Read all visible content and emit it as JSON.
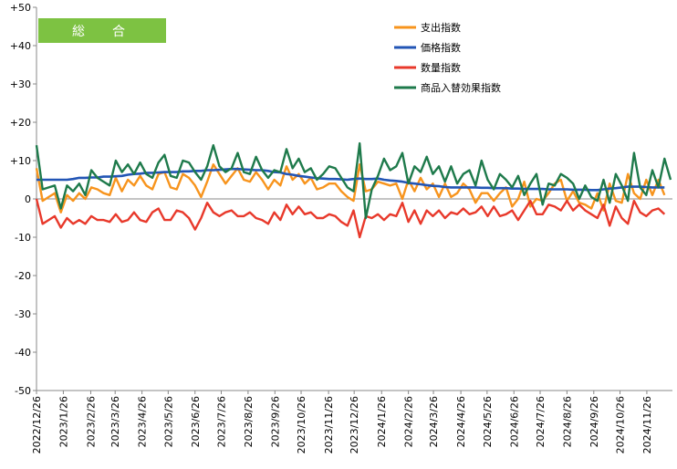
{
  "chart_data": {
    "type": "line",
    "badge": {
      "label": "総　合",
      "color": "#7dc242"
    },
    "yticks": [
      {
        "value": 50,
        "label": "+50"
      },
      {
        "value": 40,
        "label": "+40"
      },
      {
        "value": 30,
        "label": "+30"
      },
      {
        "value": 20,
        "label": "+20"
      },
      {
        "value": 10,
        "label": "+10"
      },
      {
        "value": 0,
        "label": "0"
      },
      {
        "value": -10,
        "label": "-10"
      },
      {
        "value": -20,
        "label": "-20"
      },
      {
        "value": -30,
        "label": "-30"
      },
      {
        "value": -40,
        "label": "-40"
      },
      {
        "value": -50,
        "label": "-50"
      }
    ],
    "ylim": [
      -50,
      50
    ],
    "xlim": [
      0,
      104
    ],
    "grid": false,
    "legend_position": "top-right",
    "xticks": [
      {
        "index": 0,
        "label": "2022/12/26"
      },
      {
        "index": 4.4,
        "label": "2023/1/26"
      },
      {
        "index": 8.9,
        "label": "2023/2/26"
      },
      {
        "index": 12.9,
        "label": "2023/3/26"
      },
      {
        "index": 17.3,
        "label": "2023/4/26"
      },
      {
        "index": 21.6,
        "label": "2023/5/26"
      },
      {
        "index": 26.0,
        "label": "2023/6/26"
      },
      {
        "index": 30.3,
        "label": "2023/7/26"
      },
      {
        "index": 34.7,
        "label": "2023/8/26"
      },
      {
        "index": 39.1,
        "label": "2023/9/26"
      },
      {
        "index": 43.4,
        "label": "2023/10/26"
      },
      {
        "index": 47.9,
        "label": "2023/11/26"
      },
      {
        "index": 52.1,
        "label": "2023/12/26"
      },
      {
        "index": 56.6,
        "label": "2024/1/26"
      },
      {
        "index": 61.0,
        "label": "2024/2/26"
      },
      {
        "index": 65.1,
        "label": "2024/3/26"
      },
      {
        "index": 69.6,
        "label": "2024/4/26"
      },
      {
        "index": 73.9,
        "label": "2024/5/26"
      },
      {
        "index": 78.3,
        "label": "2024/6/26"
      },
      {
        "index": 82.6,
        "label": "2024/7/26"
      },
      {
        "index": 87.0,
        "label": "2024/8/26"
      },
      {
        "index": 91.4,
        "label": "2024/9/26"
      },
      {
        "index": 95.7,
        "label": "2024/10/26"
      },
      {
        "index": 100.1,
        "label": "2024/11/26"
      }
    ],
    "series": [
      {
        "name": "支出指数",
        "color": "#f7941d",
        "values": [
          8,
          -0.5,
          0.5,
          1.5,
          -3.5,
          1,
          -0.5,
          1.5,
          0,
          3,
          2.5,
          1.5,
          1,
          5.5,
          2,
          5,
          3.5,
          6,
          3.5,
          2.5,
          6.5,
          7,
          3,
          2.5,
          6.5,
          5.5,
          3.5,
          0.5,
          4.5,
          9,
          6.5,
          4,
          6,
          8,
          5,
          4.5,
          7,
          5,
          2.5,
          5,
          3.5,
          8.5,
          5,
          6.5,
          4,
          5.5,
          2.5,
          3,
          4,
          4,
          2,
          0.5,
          -0.5,
          9,
          2,
          2.5,
          4.5,
          4,
          3.5,
          4,
          0,
          5,
          2,
          5.5,
          2.5,
          4,
          0.5,
          4,
          0.5,
          1.5,
          4,
          2.5,
          -1,
          1.5,
          1.5,
          -0.5,
          1.5,
          3,
          -2,
          0,
          4.5,
          -2,
          0,
          -0.5,
          1.5,
          4,
          5,
          -0.5,
          2,
          -1,
          -1.5,
          -2.5,
          1.5,
          -3,
          4,
          -0.5,
          -1,
          6.5,
          1.5,
          0,
          5,
          1,
          5,
          1
        ]
      },
      {
        "name": "価格指数",
        "color": "#2255b5",
        "values": [
          5,
          5,
          5,
          5,
          5,
          5,
          5.2,
          5.5,
          5.5,
          5.6,
          5.6,
          5.8,
          5.8,
          5.9,
          6,
          6.3,
          6.5,
          6.6,
          6.8,
          6.8,
          6.9,
          7,
          7,
          7,
          7.2,
          7.2,
          7.3,
          7.3,
          7.5,
          7.5,
          7.6,
          7.7,
          7.8,
          7.8,
          7.7,
          7.6,
          7.5,
          7.5,
          7.3,
          7,
          6.9,
          6.5,
          6.3,
          6,
          5.8,
          5.6,
          5.4,
          5.3,
          5.2,
          5.2,
          5.1,
          5,
          5.2,
          5.3,
          5.2,
          5.2,
          5.3,
          5,
          4.8,
          4.7,
          4.5,
          4.2,
          4,
          3.8,
          3.6,
          3.4,
          3.3,
          3.1,
          3,
          3,
          3,
          3,
          3,
          2.9,
          2.9,
          2.8,
          2.8,
          2.8,
          2.7,
          2.7,
          2.6,
          2.6,
          2.6,
          2.6,
          2.5,
          2.5,
          2.5,
          2.5,
          2.4,
          2.4,
          2.4,
          2.3,
          2.3,
          2.5,
          2.7,
          2.8,
          3,
          3.2,
          3.2,
          3.2,
          3.1,
          3,
          3,
          3
        ]
      },
      {
        "name": "数量指数",
        "color": "#e8392b",
        "values": [
          0,
          -6.5,
          -5.5,
          -4.5,
          -7.5,
          -5,
          -6.5,
          -5.5,
          -6.5,
          -4.5,
          -5.5,
          -5.5,
          -6,
          -4,
          -6,
          -5.5,
          -3.5,
          -5.5,
          -6,
          -3.5,
          -2.5,
          -5.5,
          -5.5,
          -3,
          -3.5,
          -5,
          -8,
          -5,
          -1,
          -3.5,
          -4.5,
          -3.5,
          -3,
          -4.5,
          -4.5,
          -3.5,
          -5,
          -5.5,
          -6.5,
          -3.5,
          -5.5,
          -1.5,
          -4,
          -2,
          -4,
          -3.5,
          -5,
          -5,
          -4,
          -4.5,
          -6,
          -7,
          -3,
          -10,
          -4.5,
          -5,
          -4,
          -5.5,
          -4,
          -4.5,
          -1,
          -6,
          -3,
          -6.5,
          -3,
          -4.5,
          -3,
          -5,
          -3.5,
          -4,
          -2.5,
          -4,
          -3.5,
          -2,
          -4.5,
          -2,
          -4.5,
          -4,
          -3,
          -5.5,
          -3,
          -0.5,
          -4,
          -4,
          -1.5,
          -2,
          -3,
          -0.5,
          -3,
          -1.5,
          -3,
          -4,
          -5,
          -1.5,
          -7,
          -2,
          -5,
          -6.5,
          -0.5,
          -3.5,
          -4.5,
          -3,
          -2.5,
          -4
        ]
      },
      {
        "name": "商品入替効果指数",
        "color": "#1e7a4b",
        "values": [
          14,
          2.5,
          3,
          3.5,
          -2.5,
          3.5,
          2,
          4,
          1,
          7.5,
          5.5,
          4.5,
          3.5,
          10,
          7,
          9,
          6.5,
          9.5,
          6.5,
          5.5,
          9.5,
          11.5,
          6,
          5.5,
          10,
          9.5,
          7,
          5,
          8.5,
          14,
          8.5,
          7,
          8,
          12,
          7,
          6.5,
          11,
          7.5,
          5.5,
          7.5,
          7,
          13,
          8,
          10.5,
          7,
          8,
          5,
          6.5,
          8.5,
          8,
          5.5,
          3,
          2,
          14.5,
          -5,
          2.5,
          6,
          10.5,
          7.5,
          8.5,
          12,
          4,
          8.5,
          7,
          11,
          6.5,
          8.5,
          4.5,
          8.5,
          4,
          6.5,
          7.5,
          3.5,
          10,
          5,
          2.5,
          6.5,
          5,
          3,
          6,
          1,
          4,
          6.5,
          -1.5,
          4,
          3.5,
          6.5,
          5.5,
          4,
          0,
          3.5,
          0.5,
          -0.5,
          5,
          -1,
          6.5,
          3.5,
          -0.5,
          12,
          3,
          1,
          7.5,
          3,
          10.5,
          5
        ]
      }
    ]
  }
}
